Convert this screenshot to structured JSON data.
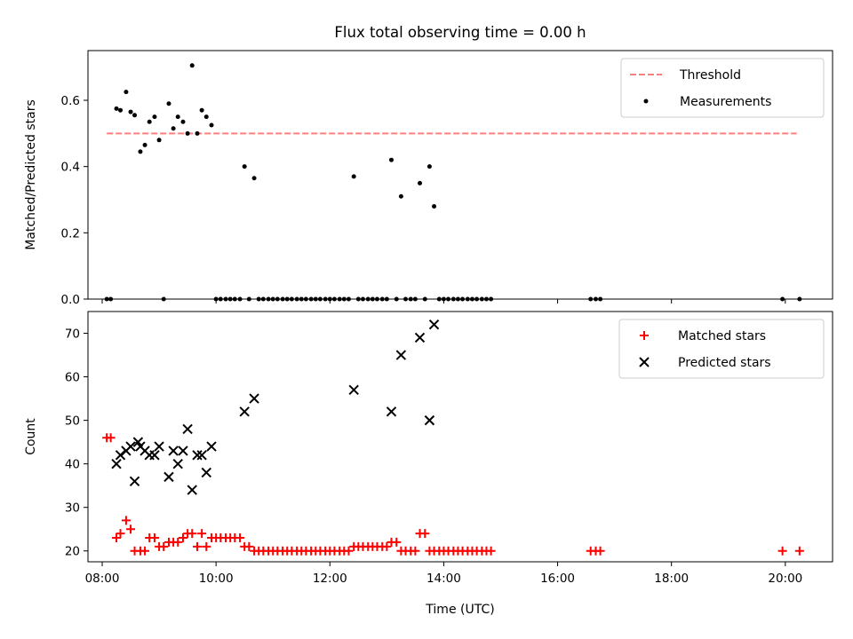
{
  "title": "Flux total observing time = 0.00 h",
  "colors": {
    "threshold": "#ff7f7f",
    "measurements": "#000000",
    "matched": "#ff0000",
    "predicted": "#000000"
  },
  "chart_data": [
    {
      "type": "scatter",
      "title": "Flux total observing time = 0.00 h",
      "xlabel": "",
      "ylabel": "Matched/Predicted stars",
      "xlim": [
        7.75,
        20.83
      ],
      "ylim": [
        0,
        0.75
      ],
      "x_ticks": [
        "08:00",
        "10:00",
        "12:00",
        "14:00",
        "16:00",
        "18:00",
        "20:00"
      ],
      "y_ticks": [
        "0.0",
        "0.2",
        "0.4",
        "0.6"
      ],
      "legend_position": "upper-right",
      "series": [
        {
          "name": "Threshold",
          "style": "dashed-line",
          "x": [
            8.08,
            20.2
          ],
          "y": [
            0.5,
            0.5
          ]
        },
        {
          "name": "Measurements",
          "style": "dot",
          "x": [
            8.08,
            8.15,
            8.25,
            8.32,
            8.42,
            8.5,
            8.57,
            8.67,
            8.75,
            8.83,
            8.92,
            9.0,
            9.08,
            9.17,
            9.25,
            9.33,
            9.42,
            9.5,
            9.58,
            9.67,
            9.75,
            9.83,
            9.92,
            10.0,
            10.08,
            10.17,
            10.25,
            10.33,
            10.42,
            10.5,
            10.58,
            10.67,
            10.75,
            10.83,
            10.92,
            11.0,
            11.08,
            11.17,
            11.25,
            11.33,
            11.42,
            11.5,
            11.58,
            11.67,
            11.75,
            11.83,
            11.92,
            12.0,
            12.08,
            12.17,
            12.25,
            12.33,
            12.42,
            12.5,
            12.58,
            12.67,
            12.75,
            12.83,
            12.92,
            13.0,
            13.08,
            13.17,
            13.25,
            13.33,
            13.42,
            13.5,
            13.58,
            13.67,
            13.75,
            13.83,
            13.92,
            14.0,
            14.08,
            14.17,
            14.25,
            14.33,
            14.42,
            14.5,
            14.58,
            14.67,
            14.75,
            14.83,
            16.58,
            16.67,
            16.75,
            19.95,
            20.25
          ],
          "y": [
            0.0,
            0.0,
            0.575,
            0.57,
            0.625,
            0.565,
            0.555,
            0.445,
            0.465,
            0.535,
            0.55,
            0.48,
            0.0,
            0.59,
            0.515,
            0.55,
            0.535,
            0.5,
            0.705,
            0.5,
            0.57,
            0.55,
            0.525,
            0.0,
            0.0,
            0.0,
            0.0,
            0.0,
            0.0,
            0.4,
            0.0,
            0.365,
            0.0,
            0.0,
            0.0,
            0.0,
            0.0,
            0.0,
            0.0,
            0.0,
            0.0,
            0.0,
            0.0,
            0.0,
            0.0,
            0.0,
            0.0,
            0.0,
            0.0,
            0.0,
            0.0,
            0.0,
            0.37,
            0.0,
            0.0,
            0.0,
            0.0,
            0.0,
            0.0,
            0.0,
            0.42,
            0.0,
            0.31,
            0.0,
            0.0,
            0.0,
            0.35,
            0.0,
            0.4,
            0.28,
            0.0,
            0.0,
            0.0,
            0.0,
            0.0,
            0.0,
            0.0,
            0.0,
            0.0,
            0.0,
            0.0,
            0.0,
            0.0,
            0.0,
            0.0,
            0.0,
            0.0
          ]
        }
      ]
    },
    {
      "type": "scatter",
      "title": "",
      "xlabel": "Time (UTC)",
      "ylabel": "Count",
      "xlim": [
        7.75,
        20.83
      ],
      "ylim": [
        17.5,
        75
      ],
      "x_ticks": [
        "08:00",
        "10:00",
        "12:00",
        "14:00",
        "16:00",
        "18:00",
        "20:00"
      ],
      "y_ticks": [
        "20",
        "30",
        "40",
        "50",
        "60",
        "70"
      ],
      "legend_position": "upper-right",
      "series": [
        {
          "name": "Matched stars",
          "style": "plus",
          "x": [
            8.08,
            8.15,
            8.25,
            8.32,
            8.42,
            8.5,
            8.57,
            8.67,
            8.75,
            8.83,
            8.92,
            9.0,
            9.08,
            9.17,
            9.25,
            9.33,
            9.42,
            9.5,
            9.58,
            9.67,
            9.75,
            9.83,
            9.92,
            10.0,
            10.08,
            10.17,
            10.25,
            10.33,
            10.42,
            10.5,
            10.58,
            10.67,
            10.75,
            10.83,
            10.92,
            11.0,
            11.08,
            11.17,
            11.25,
            11.33,
            11.42,
            11.5,
            11.58,
            11.67,
            11.75,
            11.83,
            11.92,
            12.0,
            12.08,
            12.17,
            12.25,
            12.33,
            12.42,
            12.5,
            12.58,
            12.67,
            12.75,
            12.83,
            12.92,
            13.0,
            13.08,
            13.17,
            13.25,
            13.33,
            13.42,
            13.5,
            13.58,
            13.67,
            13.75,
            13.83,
            13.92,
            14.0,
            14.08,
            14.17,
            14.25,
            14.33,
            14.42,
            14.5,
            14.58,
            14.67,
            14.75,
            14.83,
            16.58,
            16.67,
            16.75,
            19.95,
            20.25
          ],
          "y": [
            46,
            46,
            23,
            24,
            27,
            25,
            20,
            20,
            20,
            23,
            23,
            21,
            21,
            22,
            22,
            22,
            23,
            24,
            24,
            21,
            24,
            21,
            23,
            23,
            23,
            23,
            23,
            23,
            23,
            21,
            21,
            20,
            20,
            20,
            20,
            20,
            20,
            20,
            20,
            20,
            20,
            20,
            20,
            20,
            20,
            20,
            20,
            20,
            20,
            20,
            20,
            20,
            21,
            21,
            21,
            21,
            21,
            21,
            21,
            21,
            22,
            22,
            20,
            20,
            20,
            20,
            24,
            24,
            20,
            20,
            20,
            20,
            20,
            20,
            20,
            20,
            20,
            20,
            20,
            20,
            20,
            20,
            20,
            20,
            20,
            20,
            20
          ]
        },
        {
          "name": "Predicted stars",
          "style": "cross",
          "x": [
            8.25,
            8.32,
            8.42,
            8.5,
            8.57,
            8.63,
            8.67,
            8.75,
            8.83,
            8.92,
            9.0,
            9.17,
            9.25,
            9.33,
            9.42,
            9.5,
            9.58,
            9.67,
            9.75,
            9.83,
            9.92,
            10.5,
            10.67,
            12.42,
            13.08,
            13.25,
            13.58,
            13.75,
            13.83
          ],
          "y": [
            40,
            42,
            43,
            44,
            36,
            45,
            44,
            43,
            42,
            42,
            44,
            37,
            43,
            40,
            43,
            48,
            34,
            42,
            42,
            38,
            44,
            52,
            55,
            57,
            52,
            65,
            69,
            50,
            72
          ]
        }
      ]
    }
  ]
}
